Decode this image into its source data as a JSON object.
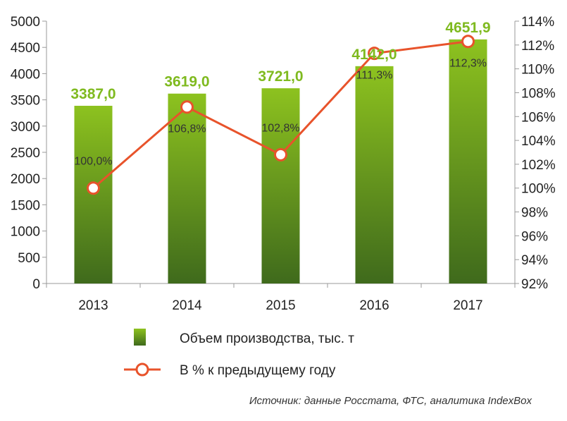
{
  "chart_data": {
    "type": "bar",
    "categories": [
      "2013",
      "2014",
      "2015",
      "2016",
      "2017"
    ],
    "series": [
      {
        "name": "Объем производства, тыс. т",
        "kind": "bar",
        "axis": "left",
        "values": [
          3387.0,
          3619.0,
          3721.0,
          4142.0,
          4651.9
        ],
        "labels": [
          "3387,0",
          "3619,0",
          "3721,0",
          "4142,0",
          "4651,9"
        ]
      },
      {
        "name": "В % к предыдущему году",
        "kind": "line",
        "axis": "right",
        "values": [
          100.0,
          106.8,
          102.8,
          111.3,
          112.3
        ],
        "labels": [
          "100,0%",
          "106,8%",
          "102,8%",
          "111,3%",
          "112,3%"
        ]
      }
    ],
    "y_left": {
      "ylim": [
        0,
        5000
      ],
      "ticks": [
        0,
        500,
        1000,
        1500,
        2000,
        2500,
        3000,
        3500,
        4000,
        4500,
        5000
      ],
      "tick_labels": [
        "0",
        "500",
        "1000",
        "1500",
        "2000",
        "2500",
        "3000",
        "3500",
        "4000",
        "4500",
        "5000"
      ]
    },
    "y_right": {
      "ylim": [
        92,
        114
      ],
      "ticks": [
        92,
        94,
        96,
        98,
        100,
        102,
        104,
        106,
        108,
        110,
        112,
        114
      ],
      "tick_labels": [
        "92%",
        "94%",
        "96%",
        "98%",
        "100%",
        "102%",
        "104%",
        "106%",
        "108%",
        "110%",
        "112%",
        "114%"
      ]
    },
    "grid": false,
    "legend": "bottom",
    "colors": {
      "bar_top": "#8dc21f",
      "bar_bottom": "#3f6a1c",
      "line": "#e8532b",
      "bar_label": "#7fba1f"
    },
    "source": "Источник: данные Росстата, ФТС, аналитика IndexBox"
  }
}
